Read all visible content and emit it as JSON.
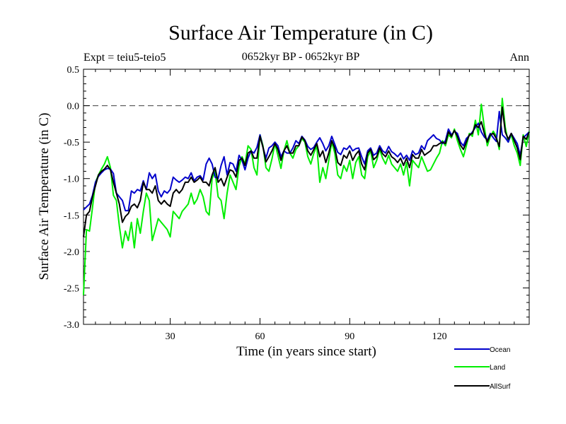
{
  "chart_data": {
    "type": "line",
    "title": "Surface Air Temperature (in C)",
    "subtitle": "0652kyr BP - 0652kyr BP",
    "expt_label": "Expt = teiu5-teio5",
    "period_label": "Ann",
    "xlabel": "Time (in years since start)",
    "ylabel": "Surface Air Temperature (in C)",
    "xlim": [
      1,
      150
    ],
    "ylim": [
      -3.0,
      0.5
    ],
    "xticks": [
      30,
      60,
      90,
      120
    ],
    "xtick_labels": [
      "30",
      "60",
      "90",
      "120"
    ],
    "yticks": [
      -3.0,
      -2.5,
      -2.0,
      -1.5,
      -1.0,
      -0.5,
      0.0,
      0.5
    ],
    "ytick_labels": [
      "-3.0",
      "-2.5",
      "-2.0",
      "-1.5",
      "-1.0",
      "-0.5",
      "0.0",
      "0.5"
    ],
    "reference_line": 0.0,
    "grid": false,
    "legend_position": "bottom-right",
    "series": [
      {
        "name": "Ocean",
        "color": "#0000cc",
        "x": [
          1,
          2,
          3,
          4,
          5,
          6,
          7,
          8,
          9,
          10,
          11,
          12,
          13,
          14,
          15,
          16,
          17,
          18,
          19,
          20,
          21,
          22,
          23,
          24,
          25,
          26,
          27,
          28,
          29,
          30,
          31,
          32,
          33,
          34,
          35,
          36,
          37,
          38,
          39,
          40,
          41,
          42,
          43,
          44,
          45,
          46,
          47,
          48,
          49,
          50,
          51,
          52,
          53,
          54,
          55,
          56,
          57,
          58,
          59,
          60,
          61,
          62,
          63,
          64,
          65,
          66,
          67,
          68,
          69,
          70,
          71,
          72,
          73,
          74,
          75,
          76,
          77,
          78,
          79,
          80,
          81,
          82,
          83,
          84,
          85,
          86,
          87,
          88,
          89,
          90,
          91,
          92,
          93,
          94,
          95,
          96,
          97,
          98,
          99,
          100,
          101,
          102,
          103,
          104,
          105,
          106,
          107,
          108,
          109,
          110,
          111,
          112,
          113,
          114,
          115,
          116,
          117,
          118,
          119,
          120,
          121,
          122,
          123,
          124,
          125,
          126,
          127,
          128,
          129,
          130,
          131,
          132,
          133,
          134,
          135,
          136,
          137,
          138,
          139,
          140,
          141,
          142,
          143,
          144,
          145,
          146,
          147,
          148,
          149,
          150
        ],
        "values": [
          -1.43,
          -1.39,
          -1.35,
          -1.23,
          -1.05,
          -0.97,
          -0.92,
          -0.88,
          -0.86,
          -0.87,
          -0.93,
          -1.2,
          -1.25,
          -1.3,
          -1.44,
          -1.44,
          -1.17,
          -1.2,
          -1.15,
          -1.17,
          -1.03,
          -1.15,
          -0.92,
          -1.0,
          -0.94,
          -1.17,
          -1.25,
          -1.17,
          -1.2,
          -1.15,
          -0.98,
          -1.02,
          -1.05,
          -1.02,
          -0.98,
          -1.0,
          -0.92,
          -1.03,
          -0.98,
          -0.96,
          -1.02,
          -0.8,
          -0.72,
          -0.8,
          -0.98,
          -1.0,
          -0.82,
          -0.7,
          -0.95,
          -0.78,
          -0.8,
          -0.9,
          -0.68,
          -0.75,
          -0.88,
          -0.72,
          -0.62,
          -0.65,
          -0.57,
          -0.4,
          -0.57,
          -0.72,
          -0.58,
          -0.55,
          -0.5,
          -0.55,
          -0.7,
          -0.62,
          -0.65,
          -0.65,
          -0.58,
          -0.48,
          -0.52,
          -0.42,
          -0.47,
          -0.56,
          -0.6,
          -0.57,
          -0.5,
          -0.44,
          -0.52,
          -0.62,
          -0.55,
          -0.42,
          -0.53,
          -0.64,
          -0.67,
          -0.58,
          -0.6,
          -0.55,
          -0.62,
          -0.59,
          -0.58,
          -0.7,
          -0.8,
          -0.62,
          -0.58,
          -0.68,
          -0.65,
          -0.55,
          -0.62,
          -0.65,
          -0.56,
          -0.63,
          -0.66,
          -0.7,
          -0.65,
          -0.73,
          -0.68,
          -0.75,
          -0.62,
          -0.67,
          -0.65,
          -0.55,
          -0.6,
          -0.48,
          -0.44,
          -0.4,
          -0.45,
          -0.47,
          -0.52,
          -0.48,
          -0.32,
          -0.4,
          -0.35,
          -0.38,
          -0.5,
          -0.55,
          -0.45,
          -0.41,
          -0.36,
          -0.3,
          -0.24,
          -0.36,
          -0.43,
          -0.47,
          -0.38,
          -0.44,
          -0.49,
          -0.08,
          -0.4,
          -0.44,
          -0.5,
          -0.38,
          -0.45,
          -0.52,
          -0.68,
          -0.44,
          -0.4,
          -0.36
        ],
        "legend_label": "Ocean"
      },
      {
        "name": "Land",
        "color": "#00ee00",
        "x": [
          1,
          2,
          3,
          4,
          5,
          6,
          7,
          8,
          9,
          10,
          11,
          12,
          13,
          14,
          15,
          16,
          17,
          18,
          19,
          20,
          21,
          22,
          23,
          24,
          25,
          26,
          27,
          28,
          29,
          30,
          31,
          32,
          33,
          34,
          35,
          36,
          37,
          38,
          39,
          40,
          41,
          42,
          43,
          44,
          45,
          46,
          47,
          48,
          49,
          50,
          51,
          52,
          53,
          54,
          55,
          56,
          57,
          58,
          59,
          60,
          61,
          62,
          63,
          64,
          65,
          66,
          67,
          68,
          69,
          70,
          71,
          72,
          73,
          74,
          75,
          76,
          77,
          78,
          79,
          80,
          81,
          82,
          83,
          84,
          85,
          86,
          87,
          88,
          89,
          90,
          91,
          92,
          93,
          94,
          95,
          96,
          97,
          98,
          99,
          100,
          101,
          102,
          103,
          104,
          105,
          106,
          107,
          108,
          109,
          110,
          111,
          112,
          113,
          114,
          115,
          116,
          117,
          118,
          119,
          120,
          121,
          122,
          123,
          124,
          125,
          126,
          127,
          128,
          129,
          130,
          131,
          132,
          133,
          134,
          135,
          136,
          137,
          138,
          139,
          140,
          141,
          142,
          143,
          144,
          145,
          146,
          147,
          148,
          149,
          150
        ],
        "values": [
          -2.6,
          -1.7,
          -1.72,
          -1.4,
          -1.05,
          -0.95,
          -0.87,
          -0.8,
          -0.7,
          -0.85,
          -1.23,
          -1.3,
          -1.65,
          -1.95,
          -1.72,
          -1.85,
          -1.6,
          -1.95,
          -1.55,
          -1.75,
          -1.45,
          -1.2,
          -1.3,
          -1.85,
          -1.7,
          -1.55,
          -1.6,
          -1.65,
          -1.7,
          -1.8,
          -1.45,
          -1.5,
          -1.55,
          -1.45,
          -1.4,
          -1.35,
          -1.2,
          -1.35,
          -1.28,
          -1.15,
          -1.25,
          -1.45,
          -1.5,
          -1.0,
          -0.9,
          -1.25,
          -1.3,
          -1.55,
          -1.2,
          -0.95,
          -1.05,
          -1.15,
          -0.83,
          -0.7,
          -0.8,
          -0.55,
          -0.6,
          -0.85,
          -0.95,
          -0.4,
          -0.55,
          -0.85,
          -0.9,
          -0.73,
          -0.52,
          -0.68,
          -0.86,
          -0.62,
          -0.48,
          -0.65,
          -0.72,
          -0.6,
          -0.55,
          -0.45,
          -0.5,
          -0.7,
          -0.8,
          -0.65,
          -0.55,
          -1.05,
          -0.85,
          -1.0,
          -0.75,
          -0.5,
          -0.65,
          -0.95,
          -1.0,
          -0.82,
          -0.9,
          -0.75,
          -1.0,
          -0.78,
          -0.7,
          -0.95,
          -1.0,
          -0.7,
          -0.62,
          -0.85,
          -0.75,
          -0.6,
          -0.72,
          -0.8,
          -0.68,
          -0.8,
          -0.85,
          -0.9,
          -0.8,
          -0.95,
          -0.78,
          -1.1,
          -0.75,
          -0.8,
          -0.85,
          -0.7,
          -0.8,
          -0.9,
          -0.88,
          -0.8,
          -0.72,
          -0.65,
          -0.48,
          -0.55,
          -0.4,
          -0.44,
          -0.32,
          -0.48,
          -0.6,
          -0.7,
          -0.55,
          -0.38,
          -0.42,
          -0.2,
          -0.4,
          0.02,
          -0.3,
          -0.55,
          -0.42,
          -0.35,
          -0.42,
          -0.6,
          0.1,
          -0.3,
          -0.5,
          -0.4,
          -0.55,
          -0.65,
          -0.82,
          -0.4,
          -0.56,
          -0.35
        ],
        "legend_label": "Land"
      },
      {
        "name": "AllSurf",
        "color": "#000000",
        "x": [
          1,
          2,
          3,
          4,
          5,
          6,
          7,
          8,
          9,
          10,
          11,
          12,
          13,
          14,
          15,
          16,
          17,
          18,
          19,
          20,
          21,
          22,
          23,
          24,
          25,
          26,
          27,
          28,
          29,
          30,
          31,
          32,
          33,
          34,
          35,
          36,
          37,
          38,
          39,
          40,
          41,
          42,
          43,
          44,
          45,
          46,
          47,
          48,
          49,
          50,
          51,
          52,
          53,
          54,
          55,
          56,
          57,
          58,
          59,
          60,
          61,
          62,
          63,
          64,
          65,
          66,
          67,
          68,
          69,
          70,
          71,
          72,
          73,
          74,
          75,
          76,
          77,
          78,
          79,
          80,
          81,
          82,
          83,
          84,
          85,
          86,
          87,
          88,
          89,
          90,
          91,
          92,
          93,
          94,
          95,
          96,
          97,
          98,
          99,
          100,
          101,
          102,
          103,
          104,
          105,
          106,
          107,
          108,
          109,
          110,
          111,
          112,
          113,
          114,
          115,
          116,
          117,
          118,
          119,
          120,
          121,
          122,
          123,
          124,
          125,
          126,
          127,
          128,
          129,
          130,
          131,
          132,
          133,
          134,
          135,
          136,
          137,
          138,
          139,
          140,
          141,
          142,
          143,
          144,
          145,
          146,
          147,
          148,
          149,
          150
        ],
        "values": [
          -1.8,
          -1.5,
          -1.45,
          -1.25,
          -1.1,
          -0.95,
          -0.9,
          -0.87,
          -0.82,
          -0.88,
          -1.05,
          -1.2,
          -1.35,
          -1.6,
          -1.52,
          -1.48,
          -1.38,
          -1.35,
          -1.4,
          -1.3,
          -1.05,
          -1.15,
          -1.15,
          -1.2,
          -1.1,
          -1.3,
          -1.35,
          -1.3,
          -1.35,
          -1.38,
          -1.2,
          -1.15,
          -1.2,
          -1.15,
          -1.05,
          -1.05,
          -0.98,
          -1.05,
          -1.02,
          -0.98,
          -1.05,
          -1.05,
          -1.1,
          -0.95,
          -0.85,
          -1.05,
          -1.0,
          -1.1,
          -0.98,
          -0.88,
          -0.9,
          -0.98,
          -0.75,
          -0.72,
          -0.82,
          -0.65,
          -0.62,
          -0.72,
          -0.72,
          -0.42,
          -0.57,
          -0.77,
          -0.7,
          -0.62,
          -0.52,
          -0.6,
          -0.75,
          -0.62,
          -0.55,
          -0.65,
          -0.65,
          -0.55,
          -0.55,
          -0.43,
          -0.48,
          -0.62,
          -0.68,
          -0.6,
          -0.52,
          -0.7,
          -0.62,
          -0.78,
          -0.65,
          -0.48,
          -0.58,
          -0.78,
          -0.82,
          -0.68,
          -0.72,
          -0.62,
          -0.75,
          -0.67,
          -0.62,
          -0.8,
          -0.88,
          -0.65,
          -0.6,
          -0.74,
          -0.7,
          -0.58,
          -0.66,
          -0.7,
          -0.62,
          -0.7,
          -0.73,
          -0.78,
          -0.72,
          -0.82,
          -0.72,
          -0.85,
          -0.67,
          -0.72,
          -0.72,
          -0.6,
          -0.68,
          -0.65,
          -0.62,
          -0.55,
          -0.55,
          -0.52,
          -0.5,
          -0.52,
          -0.36,
          -0.42,
          -0.34,
          -0.42,
          -0.54,
          -0.6,
          -0.5,
          -0.4,
          -0.38,
          -0.26,
          -0.3,
          -0.22,
          -0.38,
          -0.5,
          -0.4,
          -0.38,
          -0.45,
          -0.56,
          -0.02,
          -0.36,
          -0.46,
          -0.38,
          -0.48,
          -0.58,
          -0.74,
          -0.42,
          -0.46,
          -0.36
        ],
        "legend_label": "AllSurf"
      }
    ]
  }
}
